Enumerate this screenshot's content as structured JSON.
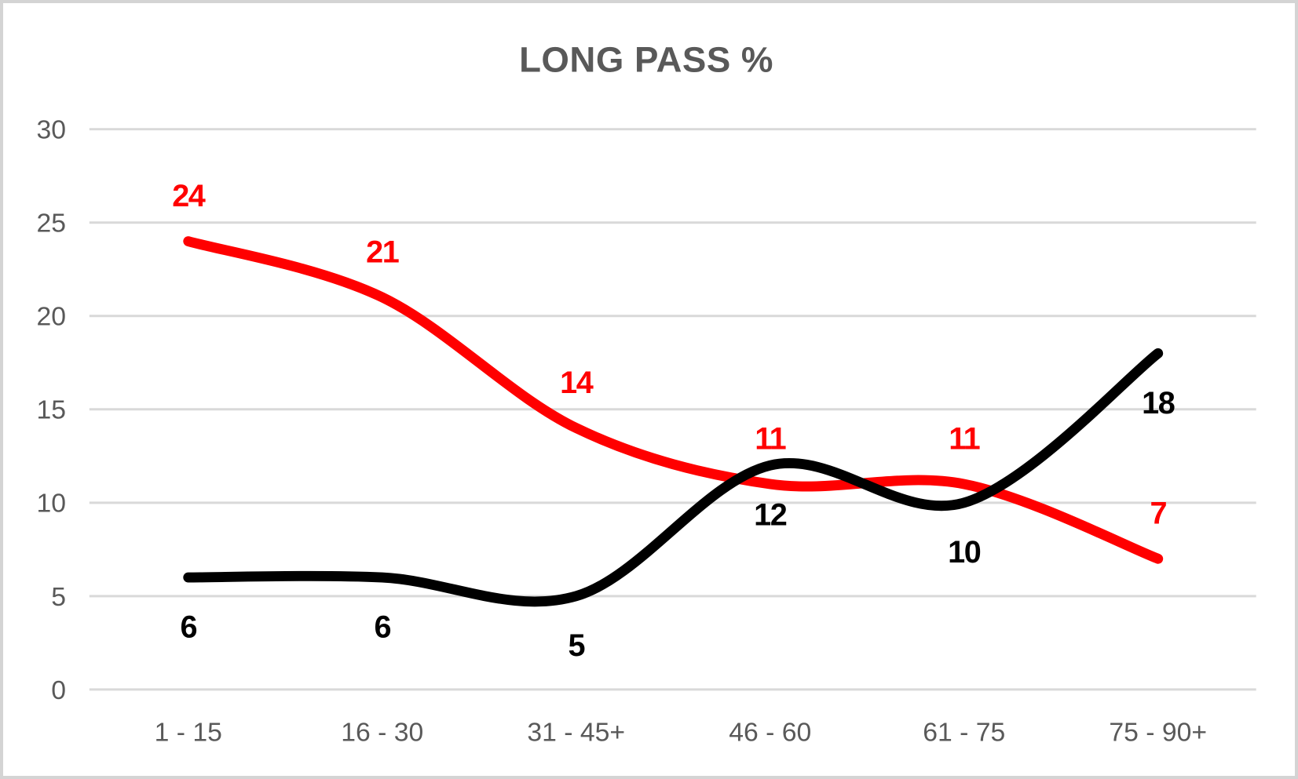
{
  "chart_data": {
    "type": "line",
    "title": "LONG PASS %",
    "smooth": true,
    "grid": true,
    "legend": "none",
    "categories": [
      "1 - 15",
      "16 - 30",
      "31 - 45+",
      "46 - 60",
      "61 - 75",
      "75 - 90+"
    ],
    "xlabel": "",
    "ylabel": "",
    "ylim": [
      0,
      30
    ],
    "yticks": [
      0,
      5,
      10,
      15,
      20,
      25,
      30
    ],
    "series": [
      {
        "name": "red-line",
        "color": "#ff0000",
        "values": [
          24,
          21,
          14,
          11,
          11,
          7
        ],
        "data_labels": "above"
      },
      {
        "name": "black-line",
        "color": "#000000",
        "values": [
          6,
          6,
          5,
          12,
          10,
          18
        ],
        "data_labels": "below"
      }
    ]
  },
  "colors": {
    "grid": "#d9d9d9",
    "axis_text": "#595959",
    "title_text": "#595959",
    "border": "#d4d4d4",
    "background": "#ffffff"
  }
}
